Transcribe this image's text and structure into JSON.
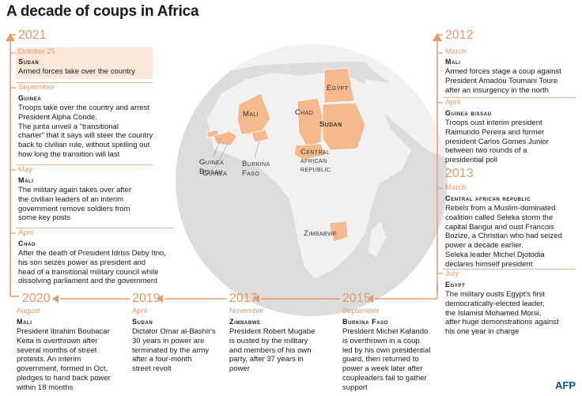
{
  "title": "A decade of coups in Africa",
  "left": [
    {
      "month": "October 25",
      "country": "Sudan",
      "desc": [
        "Armed forces take over the country"
      ]
    },
    {
      "month": "September",
      "country": "Guinea",
      "desc": [
        "Troops take over the country and arrest",
        "President Alpha Conde.",
        "The junta unveil a \"transitional",
        "charter\" that it says will steer the country",
        "back to civilian rule, without spelling out",
        "how long the transition will last"
      ]
    },
    {
      "month": "May",
      "country": "Mali",
      "desc": [
        "The military again takes over after",
        "the civilian leaders of an interim",
        "government remove soldiers from",
        "some key posts"
      ]
    },
    {
      "month": "April",
      "country": "Chad",
      "desc": [
        "After the death of President Idriss Deby Itno,",
        "his son seizes power as president and",
        "head of a transitional military council while",
        "dissolving parliament and the government"
      ]
    }
  ],
  "left_year": "2021",
  "right": [
    {
      "month": "March",
      "country": "Mali",
      "desc": [
        "Armed forces stage a coup against",
        "President Amadou Toumani Toure",
        "after an insurgency in the north"
      ]
    },
    {
      "month": "April",
      "country": "Guinea bissau",
      "desc": [
        "Troops oust interim president",
        "Raimundo Pereira and former",
        "president Carlos Gomes Junior",
        "between two rounds of a",
        "presidential poll"
      ]
    },
    {
      "month": "March",
      "country": "Central african republic",
      "desc": [
        "Rebels from a Muslim-dominated",
        "coalition called Seleka storm the",
        "capital Bangui and oust Francois",
        "Bozize, a Christian who had seized",
        "power a decade earlier.",
        "Seleka leader Michel Djotodia",
        "declares himself president"
      ]
    },
    {
      "month": "July",
      "country": "Egypt",
      "desc": [
        "The military ousts Egypt's first",
        "democratically-elected leader,",
        "the Islamist Mohamed Morsi,",
        "after huge demonstrations against",
        "his one year in charge"
      ]
    }
  ],
  "right_years": [
    "2012",
    "2013"
  ],
  "bottom": [
    {
      "year": "2020",
      "month": "August",
      "country": "Mali",
      "desc": [
        "President Ibrahim Boubacar",
        "Keita is overthrown after",
        "several months of street",
        "protests. An interim",
        "government, formed in Oct,",
        "pledges to hand back power",
        "within 18 months"
      ]
    },
    {
      "year": "2019",
      "month": "April",
      "country": "Sudan",
      "desc": [
        "Dictator Omar al-Bashir's",
        "30 years in power are",
        "terminated by the army",
        "after a four-month",
        "street revolt"
      ]
    },
    {
      "year": "2017",
      "month": "November",
      "country": "Zimbabwe",
      "desc": [
        "President Robert Mugabe",
        "is ousted by the military",
        "and members of his own",
        "party, after 37 years in",
        "power"
      ]
    },
    {
      "year": "2015",
      "month": "September",
      "country": "Burkina Faso",
      "desc": [
        "President Michel Kafando",
        "is overthrown in a coup",
        "led by his own presidential",
        "guard, then returned to",
        "power a week later after",
        "coupleaders fail to gather",
        "support"
      ]
    }
  ],
  "map_labels": {
    "mali": "Mali",
    "egypt": "Egypt",
    "chad": "Chad",
    "sudan": "Sudan",
    "guinea_bissau": [
      "Guinea",
      "Bissau"
    ],
    "guinea": "Guinea",
    "burkina": [
      "Burkina",
      "Faso"
    ],
    "car": [
      "Central",
      "african",
      "republic"
    ],
    "zimbabwe": "Zimbabwe"
  },
  "colors": {
    "accent": "#e39a6a",
    "coup_country": "#f4b98c",
    "land": "#f0f0f0",
    "ocean": "#d9d9d9"
  },
  "logo": "AFP"
}
